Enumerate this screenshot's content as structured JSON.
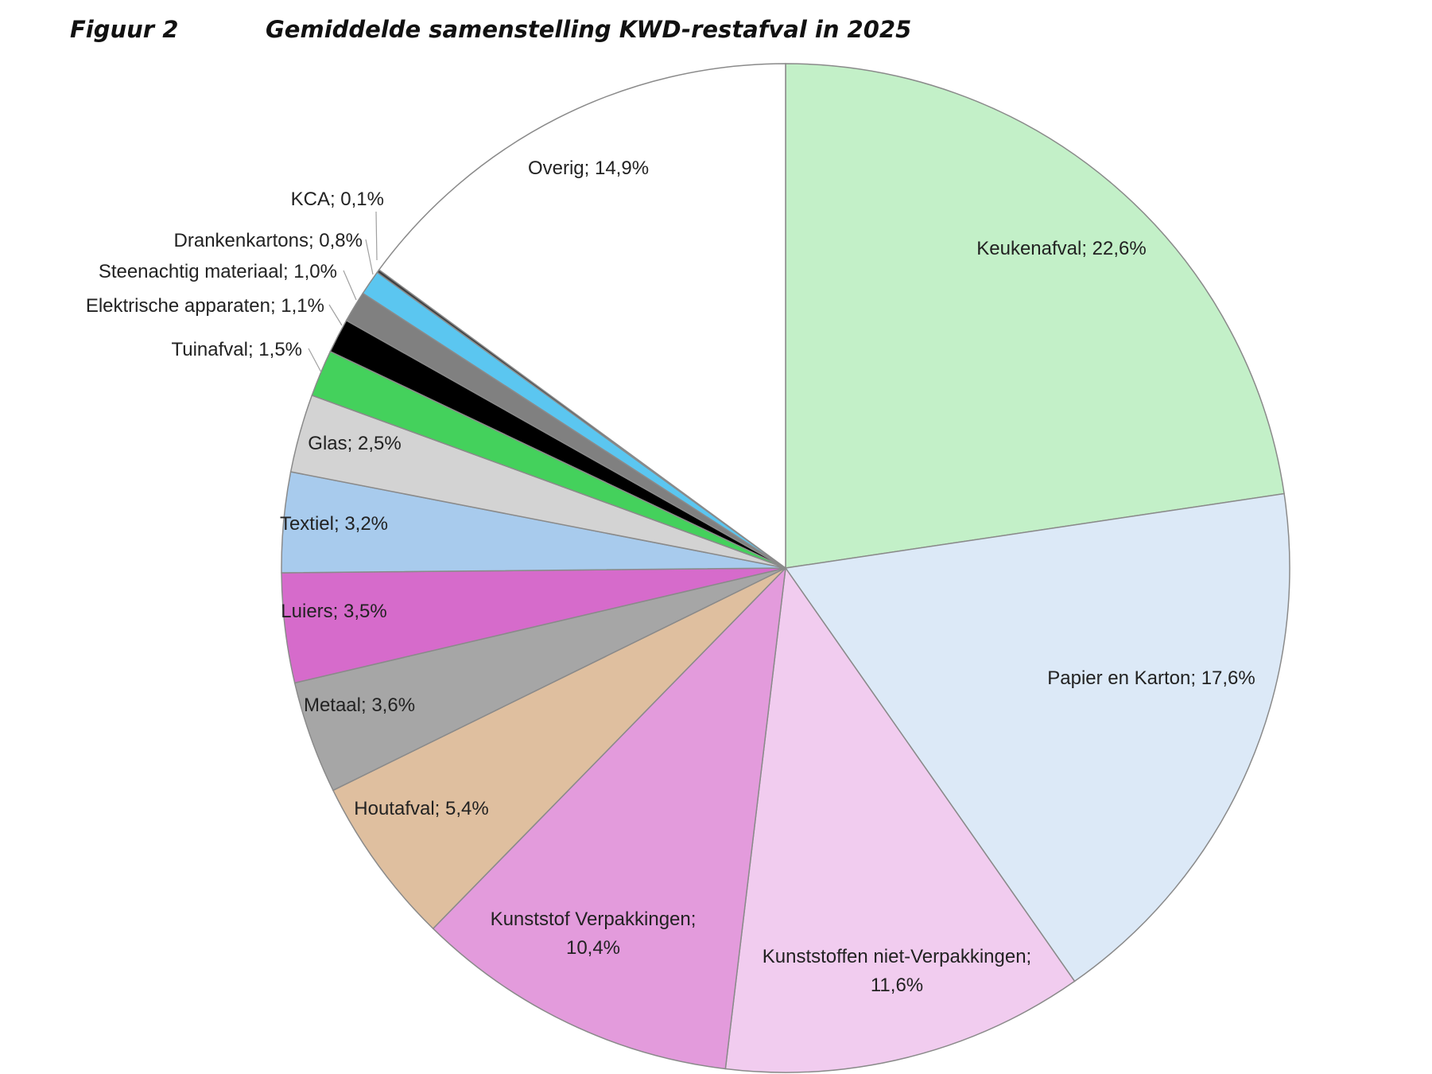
{
  "figure": {
    "number": "Figuur 2",
    "title": "Gemiddelde samenstelling KWD-restafval in 2025"
  },
  "chart_data": {
    "type": "pie",
    "title": "Gemiddelde samenstelling KWD-restafval in 2025",
    "unit": "%",
    "slices": [
      {
        "name": "Keukenafval",
        "value": 22.6,
        "label": "Keukenafval; 22,6%",
        "color": "#c3f0c8"
      },
      {
        "name": "Papier en Karton",
        "value": 17.6,
        "label": "Papier en Karton; 17,6%",
        "color": "#dce9f7"
      },
      {
        "name": "Kunststoffen niet-Verpakkingen",
        "value": 11.6,
        "label": "Kunststoffen niet-Verpakkingen; 11,6%",
        "label_lines": [
          "Kunststoffen niet-Verpakkingen;",
          "11,6%"
        ],
        "color": "#f1ccef"
      },
      {
        "name": "Kunststof Verpakkingen",
        "value": 10.4,
        "label": "Kunststof Verpakkingen; 10,4%",
        "label_lines": [
          "Kunststof Verpakkingen;",
          "10,4%"
        ],
        "color": "#e39bdc"
      },
      {
        "name": "Houtafval",
        "value": 5.4,
        "label": "Houtafval; 5,4%",
        "color": "#dfbf9f"
      },
      {
        "name": "Metaal",
        "value": 3.6,
        "label": "Metaal; 3,6%",
        "color": "#a6a6a6"
      },
      {
        "name": "Luiers",
        "value": 3.5,
        "label": "Luiers; 3,5%",
        "color": "#d66bcb"
      },
      {
        "name": "Textiel",
        "value": 3.2,
        "label": "Textiel; 3,2%",
        "color": "#a8cbed"
      },
      {
        "name": "Glas",
        "value": 2.5,
        "label": "Glas; 2,5%",
        "color": "#d3d3d3"
      },
      {
        "name": "Tuinafval",
        "value": 1.5,
        "label": "Tuinafval; 1,5%",
        "color": "#44d15c"
      },
      {
        "name": "Elektrische apparaten",
        "value": 1.1,
        "label": "Elektrische apparaten; 1,1%",
        "color": "#000000"
      },
      {
        "name": "Steenachtig materiaal",
        "value": 1.0,
        "label": "Steenachtig materiaal; 1,0%",
        "color": "#808080"
      },
      {
        "name": "Drankenkartons",
        "value": 0.8,
        "label": "Drankenkartons; 0,8%",
        "color": "#5bc6f0"
      },
      {
        "name": "KCA",
        "value": 0.1,
        "label": "KCA; 0,1%",
        "color": "#404040"
      },
      {
        "name": "Overig",
        "value": 14.9,
        "label": "Overig; 14,9%",
        "color": "#ffffff"
      }
    ],
    "legend": "none",
    "data_labels": "category; value"
  }
}
